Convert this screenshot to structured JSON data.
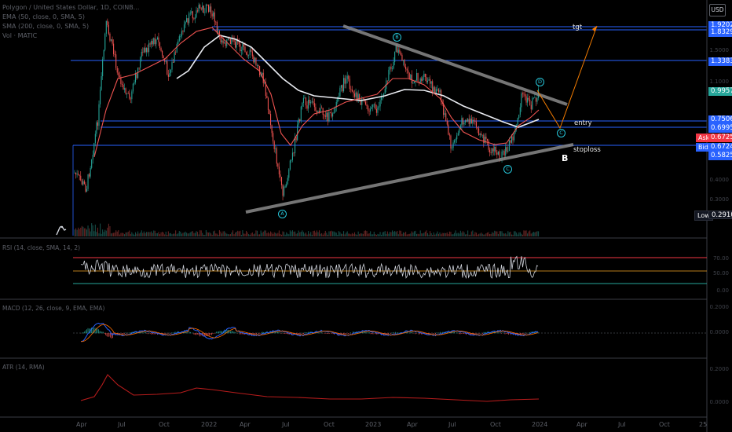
{
  "header": {
    "symbol_title": "Polygon / United States Dollar, 1D, COINB...",
    "indicator_ema": "EMA (50, close, 0, SMA, 5)",
    "indicator_sma": "SMA (200, close, 0, SMA, 5)",
    "indicator_vol": "Vol · MATIC"
  },
  "currency_button": "USD",
  "price_levels": [
    {
      "label": "1.9202",
      "color": "#2962ff"
    },
    {
      "label": "1.8329",
      "color": "#2962ff"
    },
    {
      "label": "1.3383",
      "color": "#2962ff"
    },
    {
      "label": "0.9957",
      "color": "#26a69a"
    },
    {
      "label": "0.7506",
      "color": "#2962ff"
    },
    {
      "label": "0.6995",
      "color": "#2962ff"
    },
    {
      "label": "0.5825",
      "color": "#2962ff"
    },
    {
      "label": "0.2910",
      "color": "#131722"
    }
  ],
  "quote": {
    "ask_label": "Ask",
    "ask_value": "0.6725",
    "ask_color": "#f23645",
    "bid_label": "Bid",
    "bid_value": "0.6724",
    "bid_color": "#2962ff",
    "low_label": "Low",
    "low_value": "0.2910"
  },
  "annotations": {
    "target": "tgt",
    "entry": "entry",
    "stoploss": "stoploss",
    "wave_b_big": "B"
  },
  "waves": {
    "a": "A",
    "b": "B",
    "c_low": "C",
    "d": "D",
    "e": "C"
  },
  "indicators": {
    "rsi": "RSI (14, close, SMA, 14, 2)",
    "macd": "MACD (12, 26, close, 9, EMA, EMA)",
    "atr": "ATR (14, RMA)"
  },
  "time_axis": [
    "Apr",
    "Jul",
    "Oct",
    "2022",
    "Apr",
    "Jul",
    "Oct",
    "2023",
    "Apr",
    "Jul",
    "Oct",
    "2024",
    "Apr",
    "Jul",
    "Oct",
    "25"
  ],
  "colors": {
    "background": "#000000",
    "candle_up": "#26a69a",
    "candle_down": "#ef5350",
    "ema": "#ef5350",
    "sma": "#e8eaf0",
    "level": "#2962ff",
    "trendline": "#808080",
    "projection": "#f57c00",
    "rsi_line": "#d1d4dc"
  },
  "chart_data": {
    "type": "candlestick",
    "trendlines": [
      {
        "name": "upper",
        "points": [
          [
            0,
            1.62
          ],
          [
            1,
            1.03
          ]
        ]
      },
      {
        "name": "lower",
        "points": [
          [
            0,
            0.3
          ],
          [
            1,
            0.62
          ]
        ]
      }
    ],
    "ylabel": "USD"
  }
}
